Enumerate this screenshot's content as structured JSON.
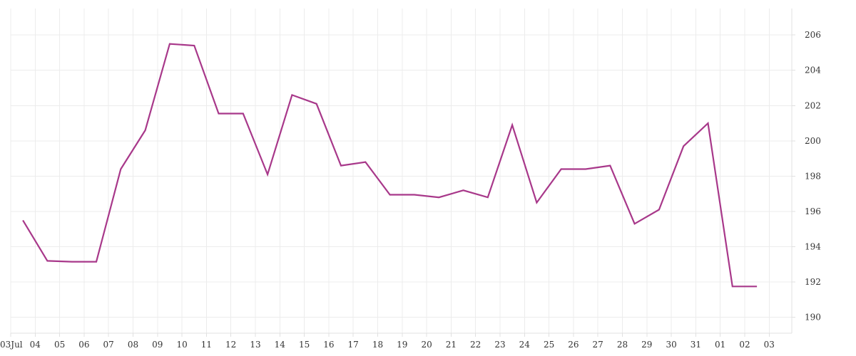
{
  "chart_data": {
    "type": "line",
    "x_ticks": [
      "03Jul",
      "04",
      "05",
      "06",
      "07",
      "08",
      "09",
      "10",
      "11",
      "12",
      "13",
      "14",
      "15",
      "16",
      "17",
      "18",
      "19",
      "20",
      "21",
      "22",
      "23",
      "24",
      "25",
      "26",
      "27",
      "28",
      "29",
      "30",
      "31",
      "01",
      "02",
      "03"
    ],
    "y_ticks": [
      "190",
      "192",
      "194",
      "196",
      "198",
      "200",
      "202",
      "204",
      "206"
    ],
    "ylim": [
      189.1,
      207.5
    ],
    "grid": true,
    "y_axis_position": "right",
    "series": [
      {
        "color": "#a8388a",
        "points": [
          {
            "x": "2023-07-03 12:00",
            "y": 195.5
          },
          {
            "x": "2023-07-04 12:00",
            "y": 193.2
          },
          {
            "x": "2023-07-05 12:00",
            "y": 193.15
          },
          {
            "x": "2023-07-06 12:00",
            "y": 193.15
          },
          {
            "x": "2023-07-07 12:00",
            "y": 198.4
          },
          {
            "x": "2023-07-08 12:00",
            "y": 200.6
          },
          {
            "x": "2023-07-09 12:00",
            "y": 205.5
          },
          {
            "x": "2023-07-10 12:00",
            "y": 205.4
          },
          {
            "x": "2023-07-11 12:00",
            "y": 201.55
          },
          {
            "x": "2023-07-12 12:00",
            "y": 201.55
          },
          {
            "x": "2023-07-13 12:00",
            "y": 198.1
          },
          {
            "x": "2023-07-14 12:00",
            "y": 202.6
          },
          {
            "x": "2023-07-15 12:00",
            "y": 202.1
          },
          {
            "x": "2023-07-16 12:00",
            "y": 198.6
          },
          {
            "x": "2023-07-17 12:00",
            "y": 198.8
          },
          {
            "x": "2023-07-18 12:00",
            "y": 196.95
          },
          {
            "x": "2023-07-19 12:00",
            "y": 196.95
          },
          {
            "x": "2023-07-20 12:00",
            "y": 196.8
          },
          {
            "x": "2023-07-21 12:00",
            "y": 197.2
          },
          {
            "x": "2023-07-22 12:00",
            "y": 196.8
          },
          {
            "x": "2023-07-23 12:00",
            "y": 200.9
          },
          {
            "x": "2023-07-24 12:00",
            "y": 196.5
          },
          {
            "x": "2023-07-25 12:00",
            "y": 198.4
          },
          {
            "x": "2023-07-26 12:00",
            "y": 198.4
          },
          {
            "x": "2023-07-27 12:00",
            "y": 198.6
          },
          {
            "x": "2023-07-28 12:00",
            "y": 195.3
          },
          {
            "x": "2023-07-29 12:00",
            "y": 196.1
          },
          {
            "x": "2023-07-30 12:00",
            "y": 199.7
          },
          {
            "x": "2023-07-31 12:00",
            "y": 201.0
          },
          {
            "x": "2023-08-01 12:00",
            "y": 191.75
          },
          {
            "x": "2023-08-02 12:00",
            "y": 191.75
          }
        ]
      }
    ]
  }
}
